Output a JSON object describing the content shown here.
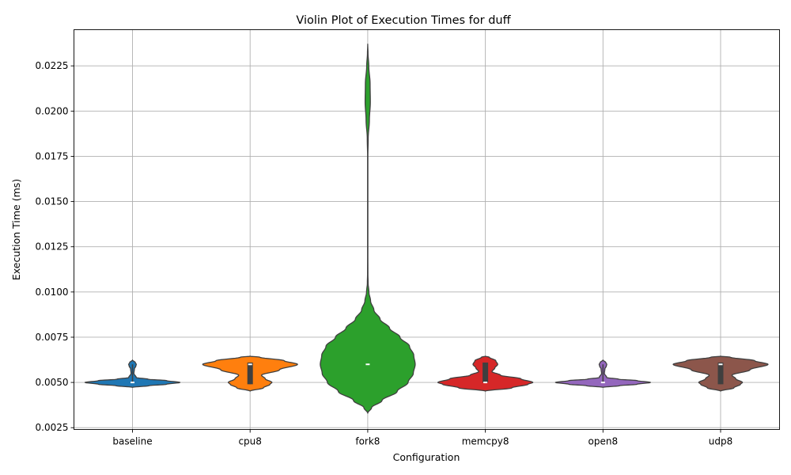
{
  "chart_data": {
    "type": "violin",
    "title": "Violin Plot of Execution Times for duff",
    "xlabel": "Configuration",
    "ylabel": "Execution Time (ms)",
    "ylim": [
      0.0024,
      0.0245
    ],
    "yticks": [
      0.0025,
      0.005,
      0.0075,
      0.01,
      0.0125,
      0.015,
      0.0175,
      0.02,
      0.0225
    ],
    "ytick_labels": [
      "0.0025",
      "0.0050",
      "0.0075",
      "0.0100",
      "0.0125",
      "0.0150",
      "0.0175",
      "0.0200",
      "0.0225"
    ],
    "grid": true,
    "categories": [
      "baseline",
      "cpu8",
      "fork8",
      "memcpy8",
      "open8",
      "udp8"
    ],
    "series": [
      {
        "color": "#1f77b4",
        "median": 0.005,
        "q1": 0.005,
        "q3": 0.005,
        "min": 0.005,
        "max": 0.006,
        "profile": [
          [
            0.00473,
            0
          ],
          [
            0.00482,
            0.35
          ],
          [
            0.0049,
            0.72
          ],
          [
            0.005,
            1.0
          ],
          [
            0.0051,
            0.72
          ],
          [
            0.00518,
            0.33
          ],
          [
            0.00527,
            0.08
          ],
          [
            0.0055,
            0.03
          ],
          [
            0.00575,
            0.04
          ],
          [
            0.0059,
            0.07
          ],
          [
            0.006,
            0.08
          ],
          [
            0.0061,
            0.06
          ],
          [
            0.00624,
            0
          ]
        ]
      },
      {
        "color": "#ff7f0e",
        "median": 0.006,
        "q1": 0.0049,
        "q3": 0.0061,
        "min": 0.0049,
        "max": 0.0061,
        "profile": [
          [
            0.00452,
            0
          ],
          [
            0.0047,
            0.28
          ],
          [
            0.0049,
            0.42
          ],
          [
            0.005,
            0.46
          ],
          [
            0.0052,
            0.32
          ],
          [
            0.0054,
            0.24
          ],
          [
            0.0057,
            0.62
          ],
          [
            0.006,
            1.0
          ],
          [
            0.0062,
            0.72
          ],
          [
            0.0064,
            0.2
          ],
          [
            0.00645,
            0
          ]
        ]
      },
      {
        "color": "#2ca02c",
        "median": 0.006,
        "q1": 0.006,
        "q3": 0.006,
        "min": 0.006,
        "max": 0.006,
        "profile": [
          [
            0.0033,
            0
          ],
          [
            0.0036,
            0.08
          ],
          [
            0.004,
            0.3
          ],
          [
            0.0045,
            0.62
          ],
          [
            0.005,
            0.85
          ],
          [
            0.0055,
            0.96
          ],
          [
            0.006,
            1.0
          ],
          [
            0.0065,
            0.97
          ],
          [
            0.007,
            0.88
          ],
          [
            0.0075,
            0.68
          ],
          [
            0.008,
            0.46
          ],
          [
            0.0085,
            0.26
          ],
          [
            0.009,
            0.13
          ],
          [
            0.0095,
            0.06
          ],
          [
            0.01,
            0.025
          ],
          [
            0.0105,
            0.008
          ],
          [
            0.011,
            0.004
          ],
          [
            0.012,
            0.003
          ],
          [
            0.0175,
            0.003
          ],
          [
            0.0185,
            0.01
          ],
          [
            0.0195,
            0.035
          ],
          [
            0.0205,
            0.055
          ],
          [
            0.0215,
            0.05
          ],
          [
            0.0225,
            0.022
          ],
          [
            0.0232,
            0.006
          ],
          [
            0.0237,
            0
          ]
        ]
      },
      {
        "color": "#d62728",
        "median": 0.005,
        "q1": 0.005,
        "q3": 0.0061,
        "min": 0.005,
        "max": 0.0061,
        "profile": [
          [
            0.00452,
            0
          ],
          [
            0.0047,
            0.56
          ],
          [
            0.0049,
            0.9
          ],
          [
            0.005,
            1.0
          ],
          [
            0.0052,
            0.75
          ],
          [
            0.0054,
            0.32
          ],
          [
            0.0056,
            0.14
          ],
          [
            0.0058,
            0.2
          ],
          [
            0.006,
            0.26
          ],
          [
            0.0062,
            0.22
          ],
          [
            0.0064,
            0.08
          ],
          [
            0.00645,
            0
          ]
        ]
      },
      {
        "color": "#9467bd",
        "median": 0.005,
        "q1": 0.005,
        "q3": 0.005,
        "min": 0.005,
        "max": 0.006,
        "profile": [
          [
            0.00473,
            0
          ],
          [
            0.00482,
            0.35
          ],
          [
            0.0049,
            0.72
          ],
          [
            0.005,
            1.0
          ],
          [
            0.0051,
            0.72
          ],
          [
            0.00518,
            0.33
          ],
          [
            0.00527,
            0.08
          ],
          [
            0.0055,
            0.03
          ],
          [
            0.00575,
            0.04
          ],
          [
            0.0059,
            0.07
          ],
          [
            0.006,
            0.08
          ],
          [
            0.0061,
            0.06
          ],
          [
            0.00624,
            0
          ]
        ]
      },
      {
        "color": "#8c564b",
        "median": 0.006,
        "q1": 0.0049,
        "q3": 0.0061,
        "min": 0.0049,
        "max": 0.0061,
        "profile": [
          [
            0.00452,
            0
          ],
          [
            0.0047,
            0.28
          ],
          [
            0.0049,
            0.42
          ],
          [
            0.005,
            0.46
          ],
          [
            0.0052,
            0.32
          ],
          [
            0.0054,
            0.24
          ],
          [
            0.0057,
            0.62
          ],
          [
            0.006,
            1.0
          ],
          [
            0.0062,
            0.72
          ],
          [
            0.0064,
            0.2
          ],
          [
            0.00645,
            0
          ]
        ]
      }
    ]
  }
}
